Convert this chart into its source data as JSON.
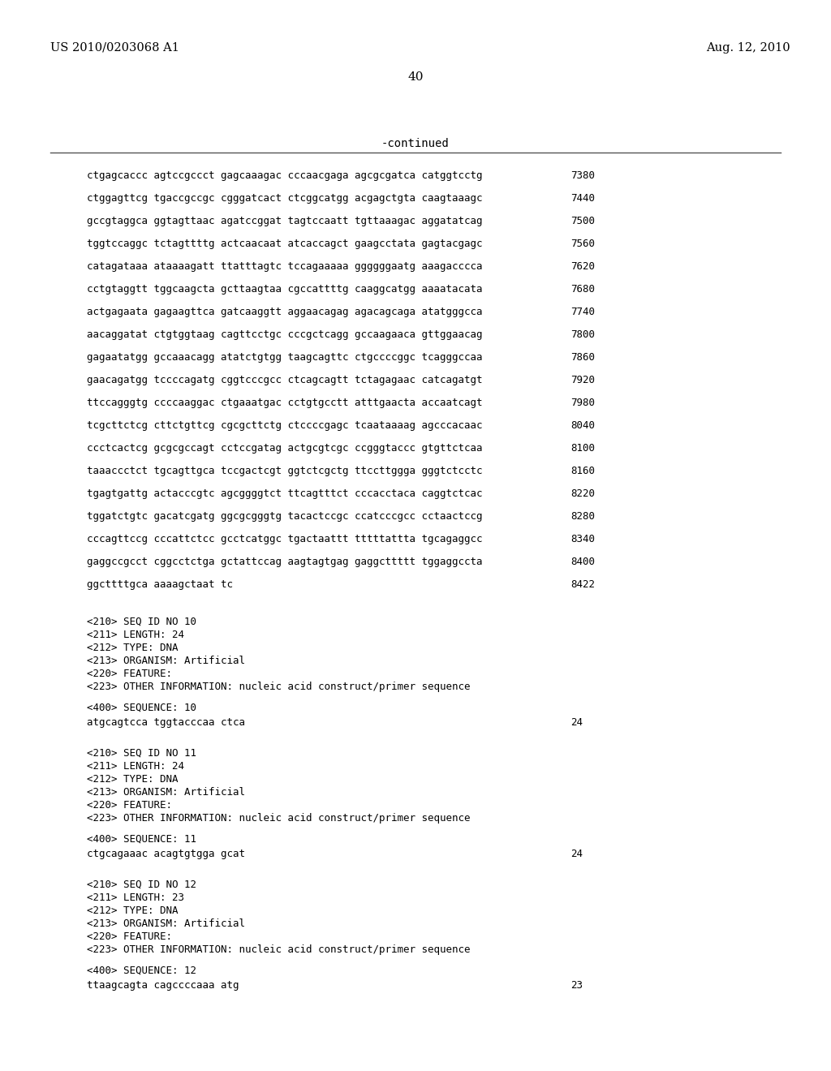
{
  "header_left": "US 2010/0203068 A1",
  "header_right": "Aug. 12, 2010",
  "page_number": "40",
  "continued_label": "-continued",
  "background_color": "#ffffff",
  "sequence_lines": [
    [
      "ctgagcaccc agtccgccct gagcaaagac cccaacgaga agcgcgatca catggtcctg",
      "7380"
    ],
    [
      "ctggagttcg tgaccgccgc cgggatcact ctcggcatgg acgagctgta caagtaaagc",
      "7440"
    ],
    [
      "gccgtaggca ggtagttaac agatccggat tagtccaatt tgttaaagac aggatatcag",
      "7500"
    ],
    [
      "tggtccaggc tctagttttg actcaacaat atcaccagct gaagcctata gagtacgagc",
      "7560"
    ],
    [
      "catagataaa ataaaagatt ttatttagtc tccagaaaaa ggggggaatg aaagacccca",
      "7620"
    ],
    [
      "cctgtaggtt tggcaagcta gcttaagtaa cgccattttg caaggcatgg aaaatacata",
      "7680"
    ],
    [
      "actgagaata gagaagttca gatcaaggtt aggaacagag agacagcaga atatgggcca",
      "7740"
    ],
    [
      "aacaggatat ctgtggtaag cagttcctgc cccgctcagg gccaagaaca gttggaacag",
      "7800"
    ],
    [
      "gagaatatgg gccaaacagg atatctgtgg taagcagttc ctgccccggc tcagggccaa",
      "7860"
    ],
    [
      "gaacagatgg tccccagatg cggtcccgcc ctcagcagtt tctagagaac catcagatgt",
      "7920"
    ],
    [
      "ttccagggtg ccccaaggac ctgaaatgac cctgtgcctt atttgaacta accaatcagt",
      "7980"
    ],
    [
      "tcgcttctcg cttctgttcg cgcgcttctg ctccccgagc tcaataaaag agcccacaac",
      "8040"
    ],
    [
      "ccctcactcg gcgcgccagt cctccgatag actgcgtcgc ccgggtaccc gtgttctcaa",
      "8100"
    ],
    [
      "taaaccctct tgcagttgca tccgactcgt ggtctcgctg ttccttggga gggtctcctc",
      "8160"
    ],
    [
      "tgagtgattg actacccgtc agcggggtct ttcagtttct cccacctaca caggtctcac",
      "8220"
    ],
    [
      "tggatctgtc gacatcgatg ggcgcgggtg tacactccgc ccatcccgcc cctaactccg",
      "8280"
    ],
    [
      "cccagttccg cccattctcc gcctcatggc tgactaattt tttttattta tgcagaggcc",
      "8340"
    ],
    [
      "gaggccgcct cggcctctga gctattccag aagtagtgag gaggcttttt tggaggccta",
      "8400"
    ],
    [
      "ggcttttgca aaaagctaat tc",
      "8422"
    ]
  ],
  "seq10_block": [
    "<210> SEQ ID NO 10",
    "<211> LENGTH: 24",
    "<212> TYPE: DNA",
    "<213> ORGANISM: Artificial",
    "<220> FEATURE:",
    "<223> OTHER INFORMATION: nucleic acid construct/primer sequence"
  ],
  "seq10_seq_label": "<400> SEQUENCE: 10",
  "seq10_sequence": [
    "atgcagtcca tggtacccaa ctca",
    "24"
  ],
  "seq11_block": [
    "<210> SEQ ID NO 11",
    "<211> LENGTH: 24",
    "<212> TYPE: DNA",
    "<213> ORGANISM: Artificial",
    "<220> FEATURE:",
    "<223> OTHER INFORMATION: nucleic acid construct/primer sequence"
  ],
  "seq11_seq_label": "<400> SEQUENCE: 11",
  "seq11_sequence": [
    "ctgcagaaac acagtgtgga gcat",
    "24"
  ],
  "seq12_block": [
    "<210> SEQ ID NO 12",
    "<211> LENGTH: 23",
    "<212> TYPE: DNA",
    "<213> ORGANISM: Artificial",
    "<220> FEATURE:",
    "<223> OTHER INFORMATION: nucleic acid construct/primer sequence"
  ],
  "seq12_seq_label": "<400> SEQUENCE: 12",
  "seq12_sequence": [
    "ttaagcagta cagccccaaa atg",
    "23"
  ]
}
